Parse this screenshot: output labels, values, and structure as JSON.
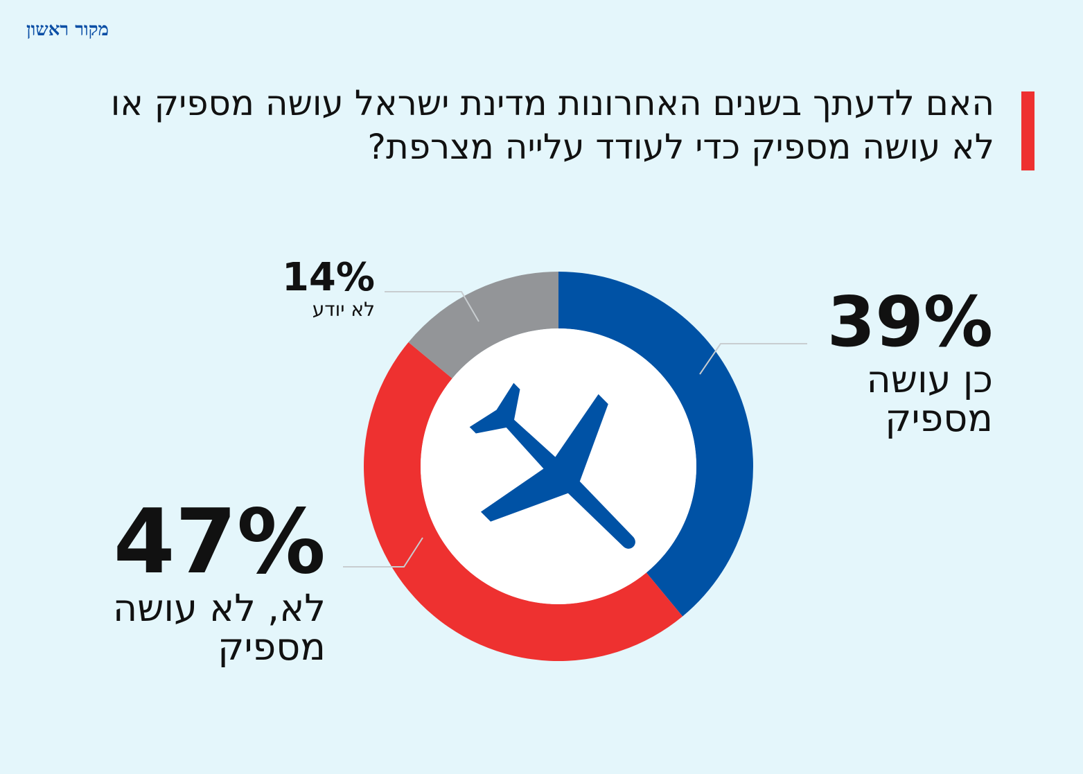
{
  "logo": "מקור ראשון",
  "chart_data": {
    "type": "pie",
    "title": "האם לדעתך בשנים האחרונות מדינת ישראל עושה מספיק או לא עושה מספיק כדי לעודד עלייה מצרפת?",
    "slices": [
      {
        "label": "כן עושה מספיק",
        "value": 39,
        "value_label": "39%",
        "color": "#0052a5"
      },
      {
        "label": "לא, לא עושה מספיק",
        "value": 47,
        "value_label": "47%",
        "color": "#ee3130"
      },
      {
        "label": "לא יודע",
        "value": 14,
        "value_label": "14%",
        "color": "#939598"
      }
    ],
    "center_icon": "airplane-icon"
  }
}
